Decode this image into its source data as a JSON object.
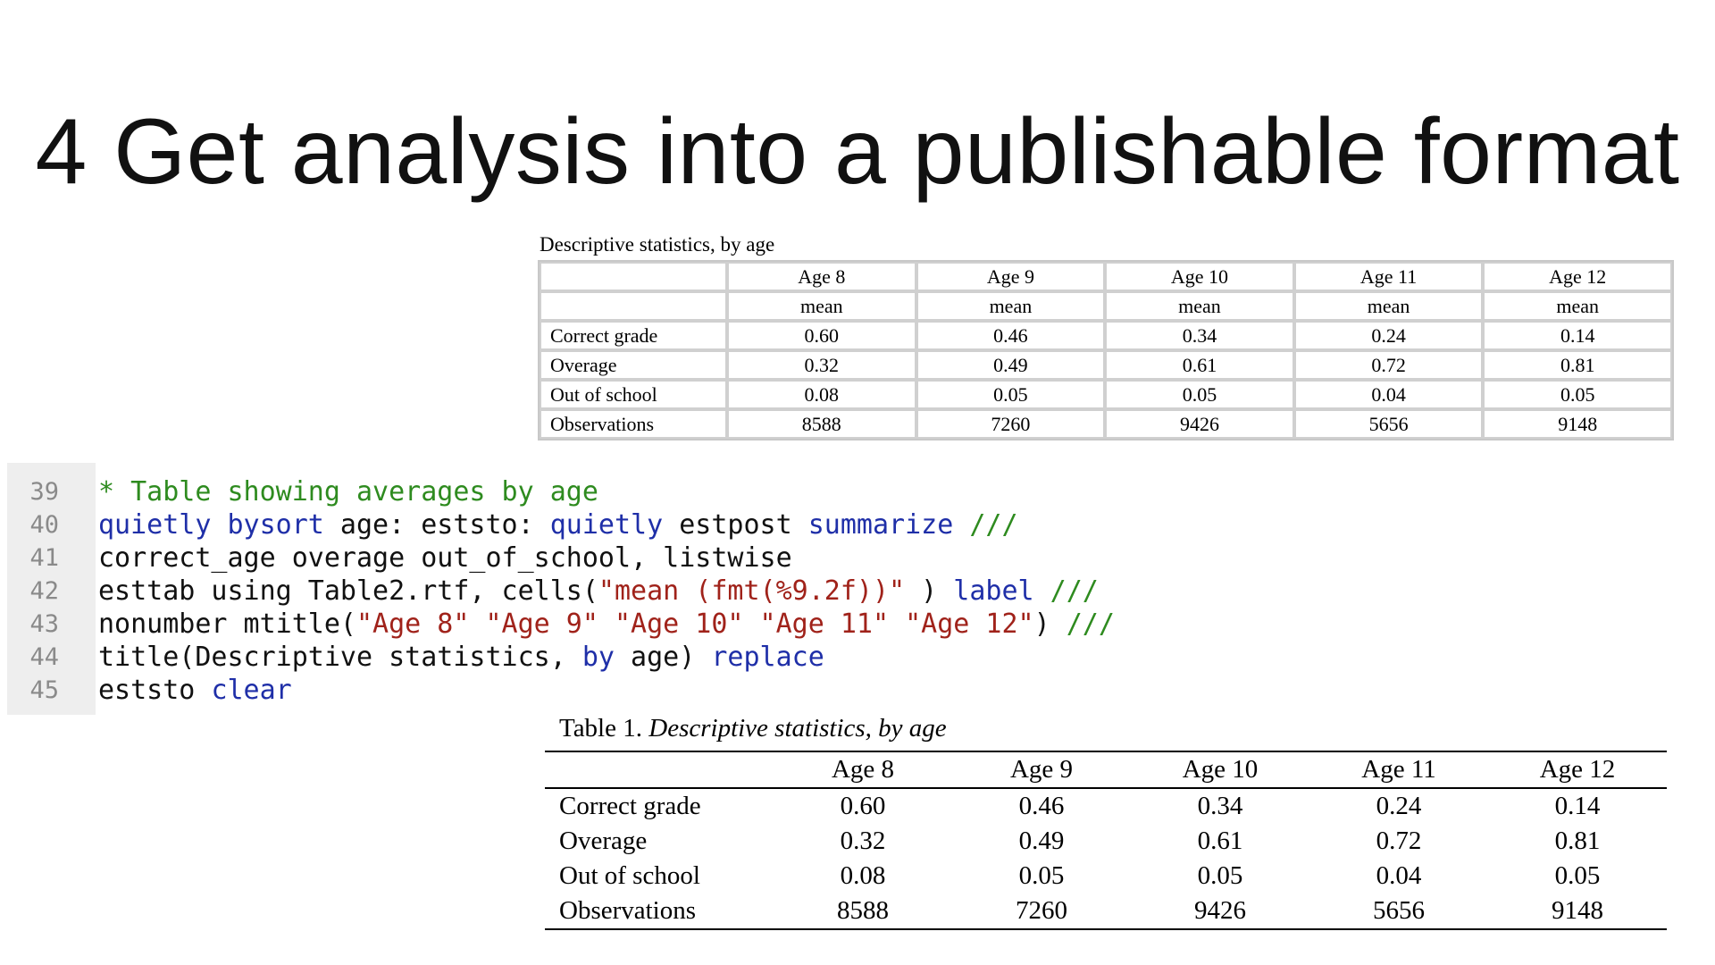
{
  "slide": {
    "title": "4 Get analysis into a publishable format"
  },
  "html_table": {
    "caption": "Descriptive statistics, by age",
    "columns": [
      "Age 8",
      "Age 9",
      "Age 10",
      "Age 11",
      "Age 12"
    ],
    "subheader": [
      "mean",
      "mean",
      "mean",
      "mean",
      "mean"
    ],
    "rows": [
      {
        "label": "Correct grade",
        "values": [
          "0.60",
          "0.46",
          "0.34",
          "0.24",
          "0.14"
        ]
      },
      {
        "label": "Overage",
        "values": [
          "0.32",
          "0.49",
          "0.61",
          "0.72",
          "0.81"
        ]
      },
      {
        "label": "Out of school",
        "values": [
          "0.08",
          "0.05",
          "0.05",
          "0.04",
          "0.05"
        ]
      },
      {
        "label": "Observations",
        "values": [
          "8588",
          "7260",
          "9426",
          "5656",
          "9148"
        ]
      }
    ]
  },
  "code": {
    "lines": [
      {
        "number": "39",
        "tokens": [
          {
            "t": "comment",
            "v": "* Table showing averages by age"
          }
        ]
      },
      {
        "number": "40",
        "tokens": [
          {
            "t": "kw",
            "v": "quietly bysort"
          },
          {
            "t": "plain",
            "v": " age: eststo: "
          },
          {
            "t": "kw",
            "v": "quietly"
          },
          {
            "t": "plain",
            "v": " estpost "
          },
          {
            "t": "kw",
            "v": "summarize"
          },
          {
            "t": "plain",
            "v": " "
          },
          {
            "t": "comment",
            "v": "///"
          }
        ]
      },
      {
        "number": "41",
        "tokens": [
          {
            "t": "plain",
            "v": "correct_age overage out_of_school, listwise"
          }
        ]
      },
      {
        "number": "42",
        "tokens": [
          {
            "t": "plain",
            "v": "esttab using Table2.rtf, cells("
          },
          {
            "t": "str",
            "v": "\"mean (fmt(%9.2f))\""
          },
          {
            "t": "plain",
            "v": " ) "
          },
          {
            "t": "kw",
            "v": "label"
          },
          {
            "t": "plain",
            "v": " "
          },
          {
            "t": "comment",
            "v": "///"
          }
        ]
      },
      {
        "number": "43",
        "tokens": [
          {
            "t": "plain",
            "v": "nonumber mtitle("
          },
          {
            "t": "str",
            "v": "\"Age 8\" \"Age 9\" \"Age 10\" \"Age 11\" \"Age 12\""
          },
          {
            "t": "plain",
            "v": ") "
          },
          {
            "t": "comment",
            "v": "///"
          }
        ]
      },
      {
        "number": "44",
        "tokens": [
          {
            "t": "plain",
            "v": "title(Descriptive statistics, "
          },
          {
            "t": "kw",
            "v": "by"
          },
          {
            "t": "plain",
            "v": " age) "
          },
          {
            "t": "kw",
            "v": "replace"
          }
        ]
      },
      {
        "number": "45",
        "tokens": [
          {
            "t": "plain",
            "v": "eststo "
          },
          {
            "t": "kw",
            "v": "clear"
          }
        ]
      }
    ]
  },
  "rtf_table": {
    "caption_prefix": "Table 1.",
    "caption_title": "Descriptive statistics, by age",
    "columns": [
      "Age 8",
      "Age 9",
      "Age 10",
      "Age 11",
      "Age 12"
    ],
    "rows": [
      {
        "label": "Correct grade",
        "values": [
          "0.60",
          "0.46",
          "0.34",
          "0.24",
          "0.14"
        ]
      },
      {
        "label": "Overage",
        "values": [
          "0.32",
          "0.49",
          "0.61",
          "0.72",
          "0.81"
        ]
      },
      {
        "label": "Out of school",
        "values": [
          "0.08",
          "0.05",
          "0.05",
          "0.04",
          "0.05"
        ]
      },
      {
        "label": "Observations",
        "values": [
          "8588",
          "7260",
          "9426",
          "5656",
          "9148"
        ]
      }
    ]
  }
}
